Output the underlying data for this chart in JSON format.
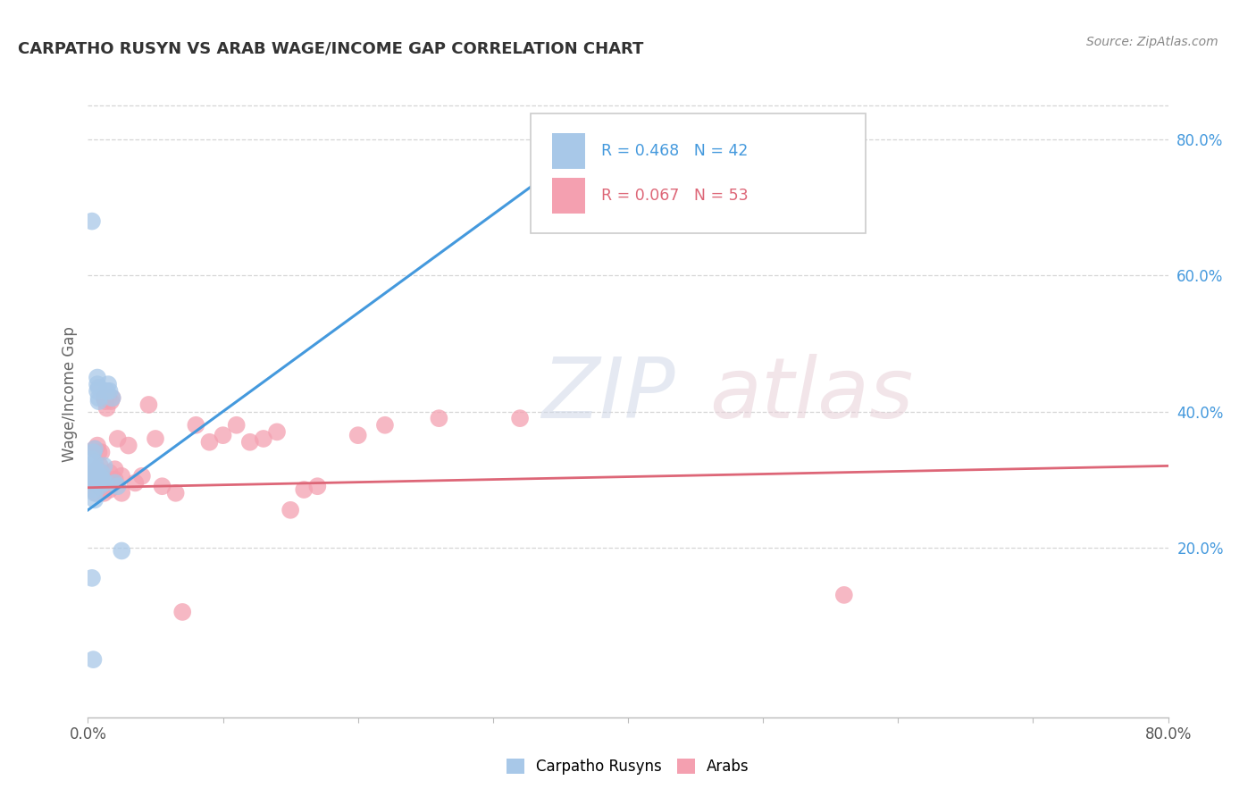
{
  "title": "CARPATHO RUSYN VS ARAB WAGE/INCOME GAP CORRELATION CHART",
  "source": "Source: ZipAtlas.com",
  "ylabel": "Wage/Income Gap",
  "xlim": [
    0.0,
    0.8
  ],
  "ylim": [
    -0.05,
    0.9
  ],
  "xtick_positions": [
    0.0,
    0.1,
    0.2,
    0.3,
    0.4,
    0.5,
    0.6,
    0.7,
    0.8
  ],
  "xtick_labels": [
    "0.0%",
    "",
    "",
    "",
    "",
    "",
    "",
    "",
    "80.0%"
  ],
  "yticks_right": [
    0.2,
    0.4,
    0.6,
    0.8
  ],
  "ytick_right_labels": [
    "20.0%",
    "40.0%",
    "60.0%",
    "80.0%"
  ],
  "legend_labels": [
    "Carpatho Rusyns",
    "Arabs"
  ],
  "blue_R_text": "R = 0.468",
  "blue_N_text": "N = 42",
  "pink_R_text": "R = 0.067",
  "pink_N_text": "N = 53",
  "blue_color": "#a8c8e8",
  "pink_color": "#f4a0b0",
  "blue_line_color": "#4499dd",
  "pink_line_color": "#dd6677",
  "background_color": "#ffffff",
  "grid_color": "#cccccc",
  "watermark": "ZIPatlas",
  "blue_line_x": [
    0.0,
    0.4
  ],
  "blue_line_y": [
    0.255,
    0.835
  ],
  "pink_line_x": [
    0.0,
    0.8
  ],
  "pink_line_y": [
    0.288,
    0.32
  ],
  "blue_points_x": [
    0.002,
    0.002,
    0.003,
    0.003,
    0.003,
    0.004,
    0.004,
    0.004,
    0.004,
    0.005,
    0.005,
    0.005,
    0.005,
    0.005,
    0.005,
    0.006,
    0.006,
    0.006,
    0.007,
    0.007,
    0.007,
    0.008,
    0.008,
    0.008,
    0.009,
    0.009,
    0.01,
    0.01,
    0.011,
    0.012,
    0.013,
    0.014,
    0.015,
    0.016,
    0.018,
    0.02,
    0.022,
    0.025,
    0.003,
    0.004,
    0.38,
    0.003
  ],
  "blue_points_y": [
    0.3,
    0.315,
    0.305,
    0.32,
    0.33,
    0.31,
    0.295,
    0.34,
    0.285,
    0.345,
    0.3,
    0.315,
    0.325,
    0.28,
    0.27,
    0.31,
    0.295,
    0.305,
    0.44,
    0.45,
    0.43,
    0.435,
    0.415,
    0.42,
    0.29,
    0.305,
    0.295,
    0.31,
    0.3,
    0.32,
    0.295,
    0.43,
    0.44,
    0.43,
    0.42,
    0.295,
    0.29,
    0.195,
    0.68,
    0.035,
    0.69,
    0.155
  ],
  "pink_points_x": [
    0.004,
    0.005,
    0.005,
    0.006,
    0.007,
    0.007,
    0.008,
    0.008,
    0.009,
    0.009,
    0.01,
    0.01,
    0.011,
    0.012,
    0.012,
    0.013,
    0.013,
    0.014,
    0.015,
    0.015,
    0.016,
    0.016,
    0.017,
    0.018,
    0.019,
    0.02,
    0.02,
    0.022,
    0.025,
    0.025,
    0.03,
    0.035,
    0.04,
    0.045,
    0.05,
    0.055,
    0.065,
    0.07,
    0.08,
    0.09,
    0.1,
    0.11,
    0.12,
    0.13,
    0.14,
    0.15,
    0.16,
    0.17,
    0.2,
    0.22,
    0.26,
    0.32,
    0.56
  ],
  "pink_points_y": [
    0.31,
    0.295,
    0.345,
    0.28,
    0.315,
    0.35,
    0.29,
    0.34,
    0.3,
    0.32,
    0.295,
    0.34,
    0.305,
    0.28,
    0.42,
    0.415,
    0.29,
    0.405,
    0.42,
    0.295,
    0.31,
    0.285,
    0.415,
    0.42,
    0.295,
    0.3,
    0.315,
    0.36,
    0.28,
    0.305,
    0.35,
    0.295,
    0.305,
    0.41,
    0.36,
    0.29,
    0.28,
    0.105,
    0.38,
    0.355,
    0.365,
    0.38,
    0.355,
    0.36,
    0.37,
    0.255,
    0.285,
    0.29,
    0.365,
    0.38,
    0.39,
    0.39,
    0.13
  ]
}
